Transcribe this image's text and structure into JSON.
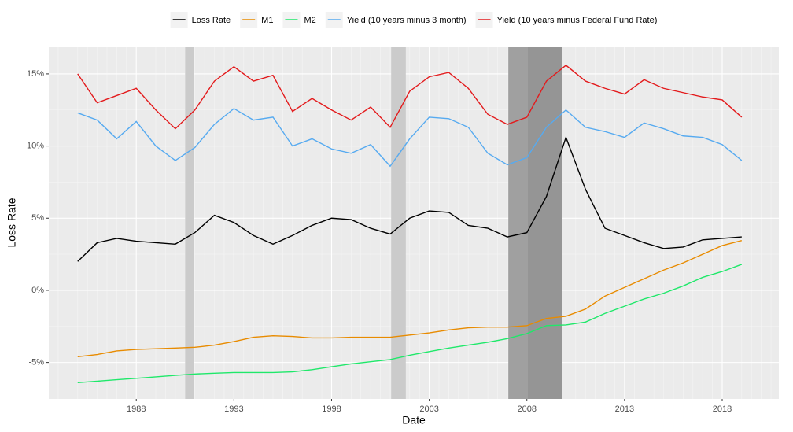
{
  "chart_data": {
    "type": "line",
    "x_label": "Date",
    "y_label": "Loss Rate",
    "x": [
      1985,
      1986,
      1987,
      1988,
      1989,
      1990,
      1991,
      1992,
      1993,
      1994,
      1995,
      1996,
      1997,
      1998,
      1999,
      2000,
      2001,
      2002,
      2003,
      2004,
      2005,
      2006,
      2007,
      2008,
      2009,
      2010,
      2011,
      2012,
      2013,
      2014,
      2015,
      2016,
      2017,
      2018,
      2019
    ],
    "series": [
      {
        "name": "Loss Rate",
        "color": "#000000",
        "values": [
          2.0,
          3.3,
          3.6,
          3.4,
          3.3,
          3.2,
          4.0,
          5.2,
          4.7,
          3.8,
          3.2,
          3.8,
          4.5,
          5.0,
          4.9,
          4.3,
          3.9,
          5.0,
          5.5,
          5.4,
          4.5,
          4.3,
          3.7,
          4.0,
          6.5,
          10.6,
          7.0,
          4.3,
          3.8,
          3.3,
          2.9,
          3.0,
          3.5,
          3.6,
          3.7
        ]
      },
      {
        "name": "M1",
        "color": "#e88b00",
        "values": [
          -4.6,
          -4.45,
          -4.2,
          -4.1,
          -4.05,
          -4.0,
          -3.95,
          -3.8,
          -3.55,
          -3.25,
          -3.15,
          -3.2,
          -3.3,
          -3.3,
          -3.25,
          -3.25,
          -3.25,
          -3.1,
          -2.95,
          -2.75,
          -2.6,
          -2.55,
          -2.55,
          -2.45,
          -1.95,
          -1.8,
          -1.3,
          -0.4,
          0.2,
          0.8,
          1.4,
          1.9,
          2.5,
          3.1,
          3.45
        ]
      },
      {
        "name": "M2",
        "color": "#1fe86a",
        "values": [
          -6.4,
          -6.3,
          -6.2,
          -6.1,
          -6.0,
          -5.9,
          -5.8,
          -5.75,
          -5.7,
          -5.7,
          -5.7,
          -5.65,
          -5.5,
          -5.3,
          -5.1,
          -4.95,
          -4.8,
          -4.5,
          -4.25,
          -4.0,
          -3.8,
          -3.6,
          -3.35,
          -3.0,
          -2.45,
          -2.4,
          -2.2,
          -1.6,
          -1.1,
          -0.6,
          -0.2,
          0.3,
          0.9,
          1.3,
          1.8
        ]
      },
      {
        "name": "Yield (10 years minus 3 month)",
        "color": "#56aaf0",
        "values": [
          12.3,
          11.8,
          10.5,
          11.7,
          10.0,
          9.0,
          9.9,
          11.5,
          12.6,
          11.8,
          12.0,
          10.0,
          10.5,
          9.8,
          9.5,
          10.1,
          8.6,
          10.5,
          12.0,
          11.9,
          11.3,
          9.5,
          8.7,
          9.2,
          11.3,
          12.5,
          11.3,
          11.0,
          10.6,
          11.6,
          11.2,
          10.7,
          10.6,
          10.1,
          9.0
        ]
      },
      {
        "name": "Yield (10 years minus Federal Fund Rate)",
        "color": "#e31a1c",
        "values": [
          15.0,
          13.0,
          13.5,
          14.0,
          12.5,
          11.2,
          12.5,
          14.5,
          15.5,
          14.5,
          14.9,
          12.4,
          13.3,
          12.5,
          11.8,
          12.7,
          11.3,
          13.8,
          14.8,
          15.1,
          14.0,
          12.2,
          11.5,
          12.0,
          14.5,
          15.6,
          14.5,
          14.0,
          13.6,
          14.6,
          14.0,
          13.7,
          13.4,
          13.2,
          12.0
        ]
      }
    ],
    "shaded_periods": [
      {
        "range": [
          1990.5,
          1990.95
        ],
        "color": "#cbcbcb"
      },
      {
        "range": [
          2001.05,
          2001.8
        ],
        "color": "#cbcbcb"
      },
      {
        "range": [
          2007.05,
          2008.05
        ],
        "color": "#a0a0a0"
      },
      {
        "range": [
          2008.05,
          2009.8
        ],
        "color": "#959595"
      }
    ],
    "xlim": [
      1983.52,
      2020.9
    ],
    "ylim": [
      -7.53,
      16.85
    ],
    "xticks": [
      1988,
      1993,
      1998,
      2003,
      2008,
      2013,
      2018
    ],
    "yticks": [
      {
        "value": -5,
        "label": "-5%"
      },
      {
        "value": 0,
        "label": "0%"
      },
      {
        "value": 5,
        "label": "5%"
      },
      {
        "value": 10,
        "label": "10%"
      },
      {
        "value": 15,
        "label": "15%"
      }
    ],
    "grid": true,
    "legend_position": "top"
  }
}
